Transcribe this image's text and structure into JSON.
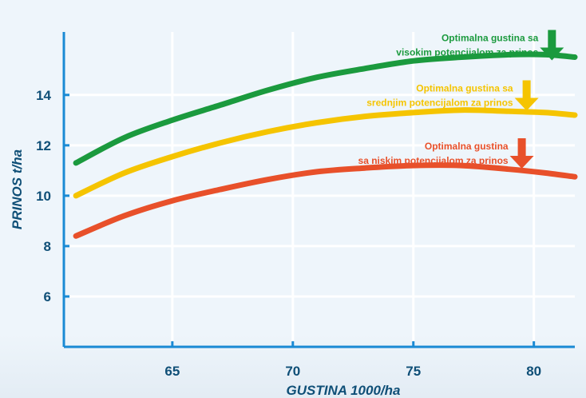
{
  "chart_data": {
    "type": "line",
    "xlabel": "GUSTINA 1000/ha",
    "ylabel": "PRINOS t/ha",
    "xlim": [
      60.5,
      81.7
    ],
    "ylim": [
      4,
      16.5
    ],
    "xticks": [
      65,
      70,
      75,
      80
    ],
    "yticks": [
      6,
      8,
      10,
      12,
      14
    ],
    "grid": true,
    "legend": "none",
    "series": [
      {
        "color": "#1b9a3e",
        "x": [
          61,
          63,
          65,
          67,
          69,
          71,
          73,
          75,
          77,
          79,
          80.5,
          81.7
        ],
        "y": [
          11.3,
          12.3,
          13.0,
          13.6,
          14.2,
          14.7,
          15.05,
          15.35,
          15.5,
          15.6,
          15.6,
          15.5
        ]
      },
      {
        "color": "#f5c400",
        "x": [
          61,
          63,
          65,
          67,
          69,
          71,
          73,
          75,
          77,
          79,
          80.5,
          81.7
        ],
        "y": [
          10.0,
          10.9,
          11.55,
          12.1,
          12.55,
          12.9,
          13.15,
          13.3,
          13.4,
          13.35,
          13.3,
          13.2
        ]
      },
      {
        "color": "#e8502a",
        "x": [
          61,
          63,
          65,
          67,
          69,
          71,
          73,
          75,
          77,
          79,
          80.5,
          81.7
        ],
        "y": [
          8.4,
          9.2,
          9.8,
          10.25,
          10.65,
          10.95,
          11.1,
          11.2,
          11.2,
          11.05,
          10.9,
          10.75
        ]
      }
    ],
    "annotations": [
      {
        "lines": [
          "Optimalna gustina sa",
          "visokim potencijalom za prinos"
        ],
        "color": "#1b9a3e",
        "arrow_x": 80.75,
        "arrow_y": 16.2
      },
      {
        "lines": [
          "Optimalna gustina sa",
          "srednjim potencijalom za prinos"
        ],
        "color": "#f5c400",
        "arrow_x": 79.7,
        "arrow_y": 14.2
      },
      {
        "lines": [
          "Optimalna gustina",
          "sa niskim potencijalom za prinos"
        ],
        "color": "#e8502a",
        "arrow_x": 79.5,
        "arrow_y": 11.9
      }
    ]
  }
}
